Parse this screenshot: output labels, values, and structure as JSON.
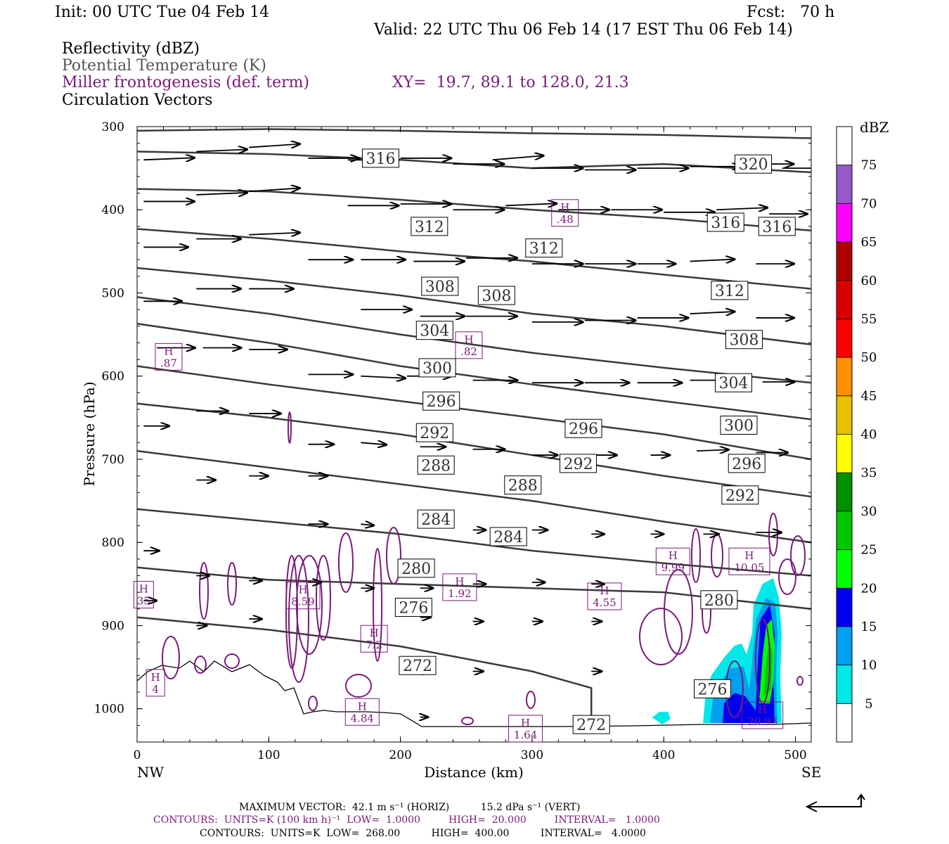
{
  "header": {
    "init": "Init: 00 UTC Tue 04 Feb 14",
    "fcst": "Fcst:   70 h",
    "valid": "Valid: 22 UTC Thu 06 Feb 14 (17 EST Thu 06 Feb 14)",
    "field1": "Reflectivity (dBZ)",
    "field2": "Potential Temperature (K)",
    "field3": "Miller frontogenesis (def. term)",
    "xy": "XY=  19.7, 89.1 to 128.0, 21.3",
    "field4": "Circulation Vectors"
  },
  "footer": {
    "max_vector": "MAXIMUM VECTOR:  42.1 m s⁻¹ (HORIZ)          15.2 dPa s⁻¹ (VERT)",
    "contours1": "CONTOURS:  UNITS=K (100 km h)⁻¹  LOW=  1.0000         HIGH=  20.000         INTERVAL=   1.0000",
    "contours2": "CONTOURS:  UNITS=K  LOW=  268.00          HIGH=  400.00          INTERVAL=   4.0000"
  },
  "colors": {
    "theta": "#3a3a3a",
    "fronto": "#7a1a7a",
    "terrain": "#000000",
    "vector": "#000000"
  },
  "colorbar": {
    "unit": "dBZ",
    "levels": [
      "5",
      "10",
      "15",
      "20",
      "25",
      "30",
      "35",
      "40",
      "45",
      "50",
      "55",
      "60",
      "65",
      "70",
      "75"
    ],
    "colors": [
      "#ffffff",
      "#00e8e8",
      "#00a0f0",
      "#0000f0",
      "#00ff00",
      "#00c800",
      "#009000",
      "#ffff00",
      "#e8c000",
      "#ff9000",
      "#ff0000",
      "#d80000",
      "#b00000",
      "#ff00ff",
      "#9858c8",
      "#ffffff"
    ]
  },
  "chart_data": {
    "type": "cross-section",
    "xlabel": "Distance (km)",
    "ylabel": "Pressure (hPa)",
    "xlim": [
      0,
      512
    ],
    "ylim": [
      1040,
      300
    ],
    "x_ticks": [
      "0",
      "100",
      "200",
      "300",
      "400",
      "500"
    ],
    "y_ticks": [
      "300",
      "400",
      "500",
      "600",
      "700",
      "800",
      "900",
      "1000"
    ],
    "x_end_left": "NW",
    "x_end_right": "SE",
    "theta_contours": [
      {
        "theta": "320",
        "pts": [
          [
            0,
            305
          ],
          [
            100,
            303
          ],
          [
            200,
            305
          ],
          [
            300,
            308
          ],
          [
            400,
            310
          ],
          [
            512,
            314
          ]
        ]
      },
      {
        "theta": "316",
        "pts": [
          [
            0,
            330
          ],
          [
            100,
            333
          ],
          [
            200,
            340
          ],
          [
            300,
            350
          ],
          [
            400,
            345
          ],
          [
            512,
            355
          ]
        ]
      },
      {
        "theta": "312",
        "pts": [
          [
            0,
            375
          ],
          [
            100,
            378
          ],
          [
            200,
            388
          ],
          [
            300,
            400
          ],
          [
            400,
            410
          ],
          [
            512,
            425
          ]
        ]
      },
      {
        "theta": "308",
        "pts": [
          [
            0,
            423
          ],
          [
            100,
            435
          ],
          [
            200,
            450
          ],
          [
            300,
            462
          ],
          [
            400,
            478
          ],
          [
            512,
            495
          ]
        ]
      },
      {
        "theta": "304",
        "pts": [
          [
            0,
            470
          ],
          [
            100,
            485
          ],
          [
            200,
            503
          ],
          [
            300,
            525
          ],
          [
            400,
            540
          ],
          [
            512,
            562
          ]
        ]
      },
      {
        "theta": "300",
        "pts": [
          [
            0,
            505
          ],
          [
            100,
            525
          ],
          [
            200,
            550
          ],
          [
            300,
            572
          ],
          [
            400,
            590
          ],
          [
            512,
            608
          ]
        ]
      },
      {
        "theta": "296",
        "pts": [
          [
            0,
            537
          ],
          [
            100,
            560
          ],
          [
            200,
            588
          ],
          [
            300,
            610
          ],
          [
            400,
            630
          ],
          [
            512,
            652
          ]
        ]
      },
      {
        "theta": "292",
        "pts": [
          [
            0,
            588
          ],
          [
            100,
            610
          ],
          [
            200,
            630
          ],
          [
            300,
            650
          ],
          [
            400,
            670
          ],
          [
            512,
            700
          ]
        ]
      },
      {
        "theta": "288",
        "pts": [
          [
            0,
            633
          ],
          [
            100,
            650
          ],
          [
            200,
            670
          ],
          [
            300,
            695
          ],
          [
            400,
            720
          ],
          [
            512,
            745
          ]
        ]
      },
      {
        "theta": "284",
        "pts": [
          [
            0,
            690
          ],
          [
            100,
            710
          ],
          [
            200,
            730
          ],
          [
            300,
            750
          ],
          [
            400,
            775
          ],
          [
            512,
            800
          ]
        ]
      },
      {
        "theta": "280",
        "pts": [
          [
            0,
            760
          ],
          [
            100,
            775
          ],
          [
            200,
            790
          ],
          [
            300,
            810
          ],
          [
            400,
            825
          ],
          [
            512,
            840
          ]
        ]
      },
      {
        "theta": "276",
        "pts": [
          [
            0,
            830
          ],
          [
            100,
            845
          ],
          [
            200,
            850
          ],
          [
            300,
            855
          ],
          [
            400,
            860
          ],
          [
            512,
            880
          ]
        ]
      },
      {
        "theta": "272",
        "pts": [
          [
            0,
            890
          ],
          [
            100,
            905
          ],
          [
            200,
            925
          ],
          [
            300,
            955
          ],
          [
            345,
            975
          ],
          [
            345,
            1018
          ]
        ]
      }
    ],
    "theta_labels": [
      {
        "text": "316",
        "x": 185,
        "p": 338
      },
      {
        "text": "320",
        "x": 468,
        "p": 345
      },
      {
        "text": "312",
        "x": 222,
        "p": 420
      },
      {
        "text": "312",
        "x": 309,
        "p": 446
      },
      {
        "text": "316",
        "x": 447,
        "p": 415
      },
      {
        "text": "316",
        "x": 486,
        "p": 420
      },
      {
        "text": "308",
        "x": 230,
        "p": 492
      },
      {
        "text": "308",
        "x": 273,
        "p": 503
      },
      {
        "text": "312",
        "x": 450,
        "p": 497
      },
      {
        "text": "304",
        "x": 226,
        "p": 545
      },
      {
        "text": "308",
        "x": 461,
        "p": 556
      },
      {
        "text": "300",
        "x": 228,
        "p": 590
      },
      {
        "text": "304",
        "x": 453,
        "p": 608
      },
      {
        "text": "296",
        "x": 231,
        "p": 630
      },
      {
        "text": "300",
        "x": 457,
        "p": 659
      },
      {
        "text": "292",
        "x": 226,
        "p": 668
      },
      {
        "text": "296",
        "x": 339,
        "p": 663
      },
      {
        "text": "292",
        "x": 335,
        "p": 705
      },
      {
        "text": "296",
        "x": 463,
        "p": 705
      },
      {
        "text": "288",
        "x": 227,
        "p": 707
      },
      {
        "text": "288",
        "x": 293,
        "p": 731
      },
      {
        "text": "292",
        "x": 458,
        "p": 743
      },
      {
        "text": "284",
        "x": 227,
        "p": 772
      },
      {
        "text": "284",
        "x": 282,
        "p": 793
      },
      {
        "text": "280",
        "x": 212,
        "p": 831
      },
      {
        "text": "276",
        "x": 210,
        "p": 878
      },
      {
        "text": "280",
        "x": 442,
        "p": 869
      },
      {
        "text": "272",
        "x": 213,
        "p": 948
      },
      {
        "text": "276",
        "x": 437,
        "p": 976
      },
      {
        "text": "272",
        "x": 345,
        "p": 1019
      }
    ],
    "fronto_maxima": [
      {
        "value": ".87",
        "x": 24,
        "p": 576
      },
      {
        "value": ".82",
        "x": 252,
        "p": 562
      },
      {
        "value": ".48",
        "x": 325,
        "p": 403
      },
      {
        "value": "8.59",
        "x": 126,
        "p": 863
      },
      {
        "value": "7.2",
        "x": 180,
        "p": 915
      },
      {
        "value": "1.92",
        "x": 245,
        "p": 853
      },
      {
        "value": "4.55",
        "x": 355,
        "p": 864
      },
      {
        "value": "9.99",
        "x": 407,
        "p": 822
      },
      {
        "value": "10.05",
        "x": 465,
        "p": 822
      },
      {
        "value": "4.84",
        "x": 171,
        "p": 1003
      },
      {
        "value": "1.64",
        "x": 295,
        "p": 1023
      },
      {
        "value": "20.93",
        "x": 475,
        "p": 1007
      },
      {
        "value": "35",
        "x": 5,
        "p": 862
      },
      {
        "value": "4",
        "x": 14,
        "p": 968
      }
    ],
    "vectors": [
      {
        "x": 5,
        "p": 340,
        "u": 40,
        "w": -5
      },
      {
        "x": 45,
        "p": 330,
        "u": 40,
        "w": -5
      },
      {
        "x": 85,
        "p": 325,
        "u": 40,
        "w": -8
      },
      {
        "x": 130,
        "p": 338,
        "u": 40,
        "w": 0
      },
      {
        "x": 160,
        "p": 340,
        "u": 40,
        "w": 0
      },
      {
        "x": 200,
        "p": 338,
        "u": 40,
        "w": 0
      },
      {
        "x": 240,
        "p": 345,
        "u": 40,
        "w": 0
      },
      {
        "x": 270,
        "p": 340,
        "u": 40,
        "w": -10
      },
      {
        "x": 300,
        "p": 350,
        "u": 40,
        "w": 0
      },
      {
        "x": 340,
        "p": 352,
        "u": 40,
        "w": 0
      },
      {
        "x": 380,
        "p": 350,
        "u": 40,
        "w": 0
      },
      {
        "x": 420,
        "p": 348,
        "u": 40,
        "w": 0
      },
      {
        "x": 460,
        "p": 345,
        "u": 40,
        "w": 0
      },
      {
        "x": 490,
        "p": 350,
        "u": 30,
        "w": 0
      },
      {
        "x": 5,
        "p": 390,
        "u": 40,
        "w": 0
      },
      {
        "x": 45,
        "p": 382,
        "u": 40,
        "w": -5
      },
      {
        "x": 85,
        "p": 378,
        "u": 40,
        "w": -8
      },
      {
        "x": 160,
        "p": 395,
        "u": 40,
        "w": 0
      },
      {
        "x": 200,
        "p": 393,
        "u": 40,
        "w": 0
      },
      {
        "x": 240,
        "p": 400,
        "u": 40,
        "w": 0
      },
      {
        "x": 280,
        "p": 395,
        "u": 40,
        "w": -5
      },
      {
        "x": 320,
        "p": 400,
        "u": 40,
        "w": 0
      },
      {
        "x": 360,
        "p": 400,
        "u": 40,
        "w": 0
      },
      {
        "x": 400,
        "p": 403,
        "u": 40,
        "w": 0
      },
      {
        "x": 440,
        "p": 400,
        "u": 40,
        "w": -5
      },
      {
        "x": 480,
        "p": 405,
        "u": 30,
        "w": 0
      },
      {
        "x": 5,
        "p": 445,
        "u": 35,
        "w": 0
      },
      {
        "x": 45,
        "p": 435,
        "u": 35,
        "w": 0
      },
      {
        "x": 85,
        "p": 430,
        "u": 40,
        "w": -5
      },
      {
        "x": 130,
        "p": 460,
        "u": 35,
        "w": 0
      },
      {
        "x": 170,
        "p": 460,
        "u": 35,
        "w": 0
      },
      {
        "x": 210,
        "p": 462,
        "u": 40,
        "w": 0
      },
      {
        "x": 250,
        "p": 458,
        "u": 40,
        "w": 0
      },
      {
        "x": 300,
        "p": 465,
        "u": 40,
        "w": 0
      },
      {
        "x": 340,
        "p": 465,
        "u": 40,
        "w": 0
      },
      {
        "x": 380,
        "p": 465,
        "u": 30,
        "w": 0
      },
      {
        "x": 420,
        "p": 462,
        "u": 35,
        "w": -5
      },
      {
        "x": 470,
        "p": 465,
        "u": 30,
        "w": 0
      },
      {
        "x": 5,
        "p": 510,
        "u": 30,
        "w": 0
      },
      {
        "x": 45,
        "p": 495,
        "u": 35,
        "w": 0
      },
      {
        "x": 85,
        "p": 495,
        "u": 35,
        "w": 0
      },
      {
        "x": 170,
        "p": 520,
        "u": 40,
        "w": 0
      },
      {
        "x": 215,
        "p": 528,
        "u": 35,
        "w": 0
      },
      {
        "x": 250,
        "p": 528,
        "u": 40,
        "w": 0
      },
      {
        "x": 300,
        "p": 535,
        "u": 40,
        "w": 0
      },
      {
        "x": 340,
        "p": 533,
        "u": 40,
        "w": 0
      },
      {
        "x": 380,
        "p": 530,
        "u": 40,
        "w": 0
      },
      {
        "x": 420,
        "p": 525,
        "u": 35,
        "w": -5
      },
      {
        "x": 470,
        "p": 530,
        "u": 30,
        "w": 0
      },
      {
        "x": 15,
        "p": 566,
        "u": 30,
        "w": 0
      },
      {
        "x": 50,
        "p": 566,
        "u": 30,
        "w": 0
      },
      {
        "x": 85,
        "p": 568,
        "u": 30,
        "w": 0
      },
      {
        "x": 130,
        "p": 598,
        "u": 35,
        "w": 0
      },
      {
        "x": 170,
        "p": 600,
        "u": 35,
        "w": 5
      },
      {
        "x": 205,
        "p": 600,
        "u": 35,
        "w": 0
      },
      {
        "x": 255,
        "p": 605,
        "u": 35,
        "w": 0
      },
      {
        "x": 300,
        "p": 608,
        "u": 40,
        "w": 0
      },
      {
        "x": 340,
        "p": 608,
        "u": 35,
        "w": 0
      },
      {
        "x": 380,
        "p": 608,
        "u": 35,
        "w": 0
      },
      {
        "x": 420,
        "p": 605,
        "u": 30,
        "w": 0
      },
      {
        "x": 475,
        "p": 607,
        "u": 25,
        "w": 0
      },
      {
        "x": 5,
        "p": 660,
        "u": 20,
        "w": 0
      },
      {
        "x": 45,
        "p": 642,
        "u": 25,
        "w": 0
      },
      {
        "x": 85,
        "p": 645,
        "u": 25,
        "w": 0
      },
      {
        "x": 130,
        "p": 682,
        "u": 20,
        "w": 0
      },
      {
        "x": 170,
        "p": 680,
        "u": 20,
        "w": 5
      },
      {
        "x": 215,
        "p": 685,
        "u": 20,
        "w": 0
      },
      {
        "x": 255,
        "p": 688,
        "u": 25,
        "w": 0
      },
      {
        "x": 300,
        "p": 695,
        "u": 20,
        "w": 0
      },
      {
        "x": 345,
        "p": 695,
        "u": 20,
        "w": 0
      },
      {
        "x": 390,
        "p": 695,
        "u": 15,
        "w": 0
      },
      {
        "x": 425,
        "p": 690,
        "u": 25,
        "w": -3
      },
      {
        "x": 470,
        "p": 692,
        "u": 25,
        "w": 0
      },
      {
        "x": 45,
        "p": 725,
        "u": 15,
        "w": 0
      },
      {
        "x": 85,
        "p": 720,
        "u": 15,
        "w": 0
      },
      {
        "x": 130,
        "p": 720,
        "u": 15,
        "w": 0
      },
      {
        "x": 130,
        "p": 778,
        "u": 15,
        "w": 0
      },
      {
        "x": 170,
        "p": 778,
        "u": 10,
        "w": 3
      },
      {
        "x": 215,
        "p": 775,
        "u": 12,
        "w": 0
      },
      {
        "x": 255,
        "p": 785,
        "u": 10,
        "w": 0
      },
      {
        "x": 300,
        "p": 785,
        "u": 12,
        "w": 0
      },
      {
        "x": 345,
        "p": 790,
        "u": 10,
        "w": 0
      },
      {
        "x": 390,
        "p": 790,
        "u": 10,
        "w": 0
      },
      {
        "x": 430,
        "p": 790,
        "u": 12,
        "w": 0
      },
      {
        "x": 470,
        "p": 788,
        "u": 20,
        "w": 0
      },
      {
        "x": 5,
        "p": 810,
        "u": 12,
        "w": 0
      },
      {
        "x": 45,
        "p": 840,
        "u": 10,
        "w": 0
      },
      {
        "x": 85,
        "p": 846,
        "u": 10,
        "w": 0
      },
      {
        "x": 130,
        "p": 848,
        "u": 10,
        "w": 0
      },
      {
        "x": 170,
        "p": 855,
        "u": 10,
        "w": 0
      },
      {
        "x": 215,
        "p": 855,
        "u": 10,
        "w": 0
      },
      {
        "x": 255,
        "p": 850,
        "u": 10,
        "w": 0
      },
      {
        "x": 300,
        "p": 848,
        "u": 10,
        "w": 0
      },
      {
        "x": 345,
        "p": 850,
        "u": 10,
        "w": 0
      },
      {
        "x": 5,
        "p": 870,
        "u": 10,
        "w": 0
      },
      {
        "x": 45,
        "p": 900,
        "u": 8,
        "w": 0
      },
      {
        "x": 85,
        "p": 892,
        "u": 10,
        "w": 0
      },
      {
        "x": 215,
        "p": 890,
        "u": 8,
        "w": 0
      },
      {
        "x": 255,
        "p": 895,
        "u": 8,
        "w": 0
      },
      {
        "x": 300,
        "p": 895,
        "u": 8,
        "w": 0
      },
      {
        "x": 345,
        "p": 895,
        "u": 8,
        "w": 0
      },
      {
        "x": 215,
        "p": 955,
        "u": 8,
        "w": 0
      },
      {
        "x": 255,
        "p": 955,
        "u": 8,
        "w": 0
      },
      {
        "x": 345,
        "p": 955,
        "u": 8,
        "w": 0
      },
      {
        "x": 215,
        "p": 1010,
        "u": 6,
        "w": 0
      },
      {
        "x": 345,
        "p": 1018,
        "u": 6,
        "w": 0
      }
    ]
  }
}
